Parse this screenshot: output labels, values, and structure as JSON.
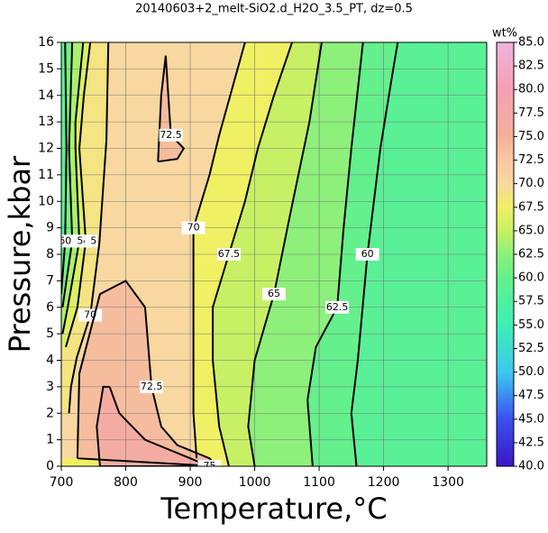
{
  "chart_data": {
    "type": "contour",
    "title": "20140603+2_melt-SiO2.d_H2O_3.5_PT, dz=0.5",
    "x_label": "Temperature,°C",
    "y_label": "Pressure,kbar",
    "colorbar_label": "wt%",
    "xlim": [
      700,
      1360
    ],
    "ylim": [
      0,
      16
    ],
    "xticks": [
      700,
      800,
      900,
      1000,
      1100,
      1200,
      1300
    ],
    "yticks": [
      0,
      1,
      2,
      3,
      4,
      5,
      6,
      7,
      8,
      9,
      10,
      11,
      12,
      13,
      14,
      15,
      16
    ],
    "grid": true,
    "zlim": [
      40,
      85
    ],
    "zticks": [
      {
        "value": 40,
        "label": "40.0"
      },
      {
        "value": 42.5,
        "label": "42.5"
      },
      {
        "value": 45,
        "label": "45.0"
      },
      {
        "value": 47.5,
        "label": "47.5"
      },
      {
        "value": 50,
        "label": "50.0"
      },
      {
        "value": 52.5,
        "label": "52.5"
      },
      {
        "value": 55,
        "label": "55.0"
      },
      {
        "value": 57.5,
        "label": "57.5"
      },
      {
        "value": 60,
        "label": "60.0"
      },
      {
        "value": 62.5,
        "label": "62.5"
      },
      {
        "value": 65,
        "label": "65.0"
      },
      {
        "value": 67.5,
        "label": "67.5"
      },
      {
        "value": 70,
        "label": "70.0"
      },
      {
        "value": 72.5,
        "label": "72.5"
      },
      {
        "value": 75,
        "label": "75.0"
      },
      {
        "value": 77.5,
        "label": "77.5"
      },
      {
        "value": 80,
        "label": "80.0"
      },
      {
        "value": 82.5,
        "label": "82.5"
      },
      {
        "value": 85,
        "label": "85.0"
      }
    ],
    "colormap": [
      [
        40,
        "#3c14c8"
      ],
      [
        45,
        "#3c50f0"
      ],
      [
        50,
        "#3cc8f0"
      ],
      [
        55,
        "#3cf0b4"
      ],
      [
        60,
        "#64f08c"
      ],
      [
        62.5,
        "#8cf07a"
      ],
      [
        65,
        "#c8f064"
      ],
      [
        67.5,
        "#f0f064"
      ],
      [
        70,
        "#f8d8a0"
      ],
      [
        72.5,
        "#f8c8a0"
      ],
      [
        75,
        "#f4b09c"
      ],
      [
        80,
        "#f4a0b4"
      ],
      [
        85,
        "#f0b4e0"
      ]
    ],
    "contours": [
      {
        "level": 60,
        "x": [
          1158,
          1150,
          1160,
          1175,
          1195,
          1215,
          1222
        ],
        "y": [
          0,
          2,
          4,
          8,
          12,
          15,
          16
        ]
      },
      {
        "level": 62.5,
        "x": [
          1090,
          1082,
          1095,
          1128,
          1138,
          1150,
          1168
        ],
        "y": [
          0,
          2.5,
          4.5,
          6,
          9,
          12,
          16
        ]
      },
      {
        "level": 65,
        "x": [
          1000,
          990,
          1000,
          1030,
          1055,
          1085,
          1104
        ],
        "y": [
          0,
          1.5,
          4,
          6.5,
          9.5,
          13,
          16
        ]
      },
      {
        "level": 67.5,
        "x": [
          960,
          945,
          935,
          935,
          960,
          985,
          1005,
          1030,
          1058
        ],
        "y": [
          0,
          1.5,
          4,
          6,
          8,
          10,
          12,
          14,
          16
        ]
      },
      {
        "level": 70,
        "x": [
          910,
          905,
          905,
          905,
          930,
          945,
          985
        ],
        "y": [
          0.3,
          2,
          5,
          9,
          11,
          12.5,
          16
        ]
      },
      {
        "level": 70,
        "x": [
          773,
          770,
          759,
          745,
          724,
          715,
          712
        ],
        "y": [
          16,
          12.3,
          8.4,
          5.7,
          4.1,
          3,
          2
        ]
      },
      {
        "level": 67.5,
        "x": [
          745,
          735,
          728,
          738,
          725,
          707
        ],
        "y": [
          16,
          14,
          12,
          8.5,
          6,
          4.5
        ]
      },
      {
        "level": 65,
        "x": [
          734,
          722,
          722,
          728,
          710,
          702
        ],
        "y": [
          16,
          13,
          12,
          8.5,
          6,
          5
        ]
      },
      {
        "level": 62.5,
        "x": [
          717,
          712,
          717,
          702
        ],
        "y": [
          16,
          12,
          8.5,
          6
        ]
      },
      {
        "level": 60,
        "x": [
          706,
          708,
          706,
          700
        ],
        "y": [
          16,
          12,
          8.5,
          6.5
        ]
      },
      {
        "level": 72.5,
        "x": [
          725,
          728,
          760,
          800,
          830,
          840,
          855,
          880,
          930,
          940,
          725
        ],
        "y": [
          0.3,
          3.5,
          6.5,
          7,
          6,
          3,
          1.5,
          0.8,
          0.3,
          0,
          0.3
        ]
      },
      {
        "level": 72.5,
        "x": [
          850,
          855,
          862,
          870,
          890,
          880,
          850
        ],
        "y": [
          11.5,
          14,
          15.5,
          12.5,
          12,
          11.6,
          11.5
        ]
      },
      {
        "level": 75,
        "x": [
          775,
          790,
          830,
          900,
          930,
          760,
          755,
          765,
          775
        ],
        "y": [
          3,
          2,
          1,
          0.3,
          0,
          0,
          1.5,
          3,
          3
        ]
      }
    ]
  }
}
